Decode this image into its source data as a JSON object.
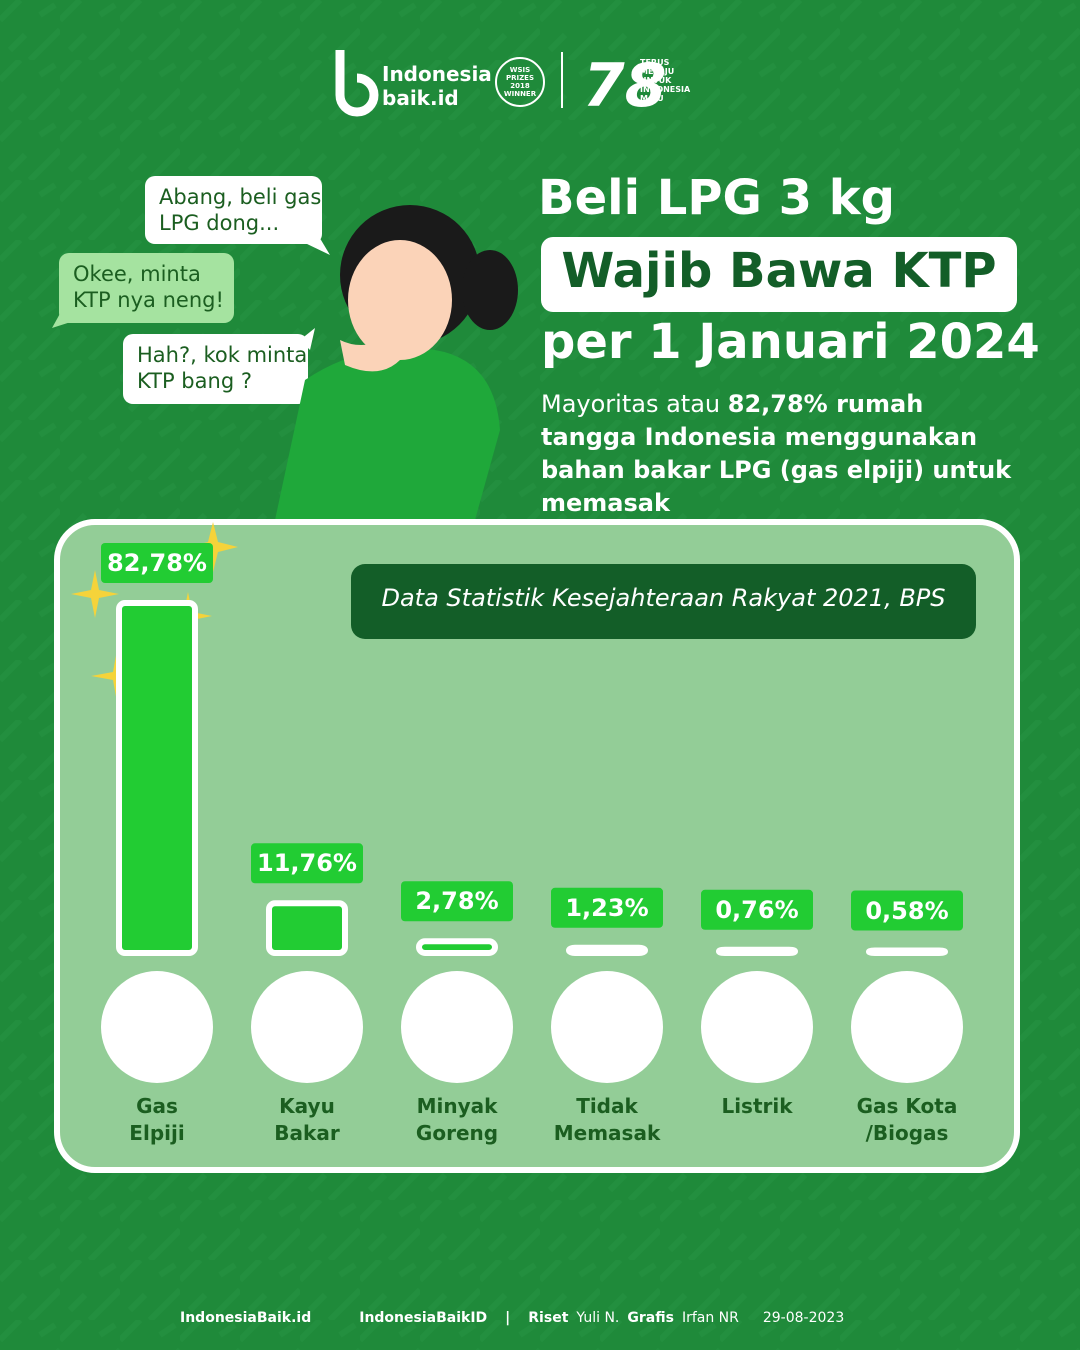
{
  "header": {
    "logo_top": "Indonesia",
    "logo_bottom": "baik.id",
    "badge": "WSIS PRIZES 2018 WINNER",
    "anniversary": "TERUS MELAJU UNTUK INDONESIA MAJU"
  },
  "bubbles": [
    "Abang, beli gas\nLPG dong...",
    "Okee, minta\nKTP nya neng!",
    "Hah?, kok minta\nKTP bang ?"
  ],
  "title": {
    "line1": "Beli LPG 3 kg",
    "line2": "Wajib Bawa KTP",
    "line3": "per 1 Januari 2024"
  },
  "subtitle": {
    "plain": "Mayoritas atau ",
    "bold": "82,78% rumah tangga Indonesia menggunakan bahan bakar LPG (gas elpiji) untuk memasak"
  },
  "chart_data": {
    "type": "bar",
    "source": "Data Statistik Kesejahteraan Rakyat 2021, BPS",
    "categories": [
      "Gas\nElpiji",
      "Kayu\nBakar",
      "Minyak\nGoreng",
      "Tidak\nMemasak",
      "Listrik",
      "Gas Kota\n/Biogas"
    ],
    "values": [
      82.78,
      11.76,
      2.78,
      1.23,
      0.76,
      0.58
    ],
    "value_labels": [
      "82,78%",
      "11,76%",
      "2,78%",
      "1,23%",
      "0,76%",
      "0,58%"
    ],
    "color": "#22cc33"
  },
  "footer": {
    "social": "IndonesiaBaik.id",
    "social2": "IndonesiaBaikID",
    "sep": "|",
    "riset_label": "Riset",
    "riset": "Yuli N.",
    "grafis_label": "Grafis",
    "grafis": "Irfan NR",
    "date": "29-08-2023"
  }
}
